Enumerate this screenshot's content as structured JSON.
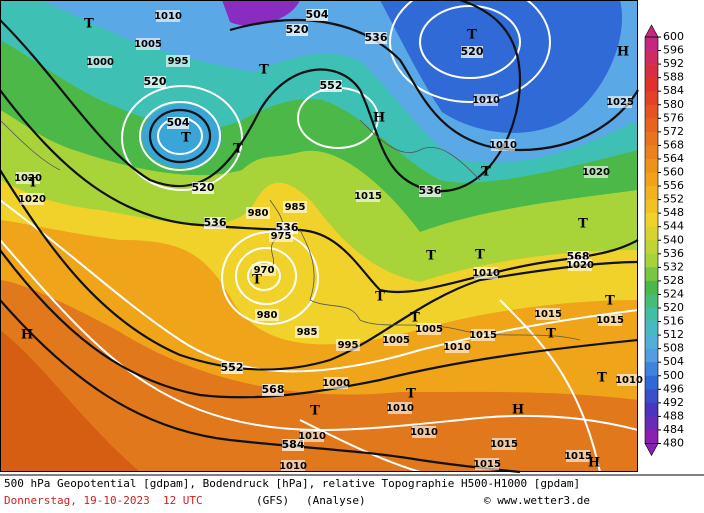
{
  "colorbar": {
    "ticks": [
      600,
      596,
      592,
      588,
      584,
      580,
      576,
      572,
      568,
      564,
      560,
      556,
      552,
      548,
      544,
      540,
      536,
      532,
      528,
      524,
      520,
      516,
      512,
      508,
      504,
      500,
      496,
      492,
      488,
      484,
      480
    ]
  },
  "map_labels": [
    "504",
    "520",
    "536",
    "520",
    "552",
    "520",
    "504",
    "520",
    "536",
    "536",
    "536",
    "568",
    "552",
    "568",
    "584",
    "1010",
    "1005",
    "1000",
    "995",
    "1010",
    "1025",
    "1010",
    "1020",
    "1020",
    "1020",
    "1015",
    "985",
    "980",
    "975",
    "970",
    "980",
    "985",
    "995",
    "1005",
    "1005",
    "1010",
    "1015",
    "1010",
    "1015",
    "1015",
    "1010",
    "1000",
    "1010",
    "1010",
    "1010",
    "1010",
    "1015",
    "1015",
    "1015",
    "1020",
    "H",
    "H",
    "H",
    "H",
    "H",
    "T",
    "T",
    "T",
    "T",
    "T",
    "T",
    "T",
    "T",
    "T",
    "T",
    "T",
    "T",
    "T",
    "T",
    "T",
    "T",
    "T",
    "T"
  ],
  "footer": {
    "description": "500 hPa Geopotential [gdpam], Bodendruck [hPa], relative Topographie H500-H1000 [gpdam]",
    "date": "Donnerstag, 19-10-2023  12 UTC",
    "model": "(GFS)",
    "run": "(Analyse)",
    "credit": "© www.wetter3.de"
  }
}
